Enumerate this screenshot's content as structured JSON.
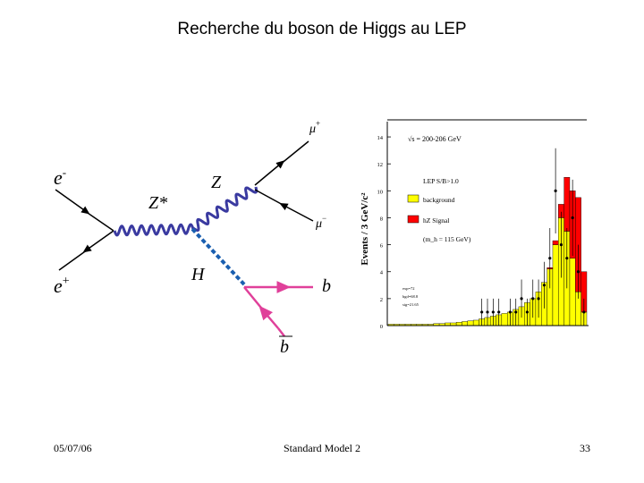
{
  "slide": {
    "title": "Recherche du boson de Higgs au LEP",
    "footer_date": "05/07/06",
    "footer_center": "Standard Model 2",
    "page_number": "33"
  },
  "feynman": {
    "electron": "e",
    "electron_sup": "-",
    "positron": "e",
    "positron_sup": "+",
    "virtual_z": "Z*",
    "z": "Z",
    "higgs": "H",
    "muon_plus": "μ",
    "muon_plus_sup": "+",
    "muon_minus": "μ",
    "muon_minus_sup": "−",
    "b_quark": "b",
    "b_bar": "b",
    "colors": {
      "boson": "#3a3aa0",
      "higgs": "#1a5fb0",
      "quark": "#e0409a"
    }
  },
  "chart_data": {
    "type": "histogram",
    "ylabel": "Events / 3 GeV/c²",
    "ylim": [
      0,
      15
    ],
    "yticks": [
      "0",
      "2",
      "4",
      "6",
      "8",
      "10",
      "12",
      "14"
    ],
    "header": "√s = 200-206 GeV",
    "legend": [
      {
        "label": "LEP S/B>1.0",
        "color": null
      },
      {
        "label": "background",
        "color": "#ffff00"
      },
      {
        "label": "hZ Signal",
        "color": "#ff0000"
      },
      {
        "label": "(m_h = 115 GeV)",
        "color": null
      }
    ],
    "stats": [
      "exp=72",
      "bgd=68.8",
      "sig=21.65"
    ],
    "background": [
      0.1,
      0.1,
      0.1,
      0.1,
      0.1,
      0.1,
      0.1,
      0.1,
      0.15,
      0.15,
      0.2,
      0.2,
      0.25,
      0.3,
      0.35,
      0.4,
      0.5,
      0.6,
      0.7,
      0.8,
      0.9,
      1.0,
      1.2,
      1.4,
      1.7,
      2.0,
      2.5,
      3.2,
      4.2,
      6.0,
      8.0,
      7.0,
      5.0,
      2.5,
      1.0
    ],
    "signal": [
      0,
      0,
      0,
      0,
      0,
      0,
      0,
      0,
      0,
      0,
      0,
      0,
      0,
      0,
      0,
      0,
      0,
      0,
      0,
      0,
      0,
      0,
      0,
      0,
      0,
      0,
      0,
      0,
      0.1,
      0.3,
      1.0,
      4.0,
      5.0,
      7.0,
      3.0
    ],
    "data_points": [
      0,
      0,
      0,
      0,
      0,
      0,
      0,
      0,
      0,
      0,
      0,
      0,
      0,
      0,
      0,
      0,
      1,
      1,
      1,
      1,
      0,
      1,
      1,
      2,
      1,
      2,
      2,
      3,
      5,
      10,
      6,
      5,
      8,
      4,
      1
    ]
  }
}
